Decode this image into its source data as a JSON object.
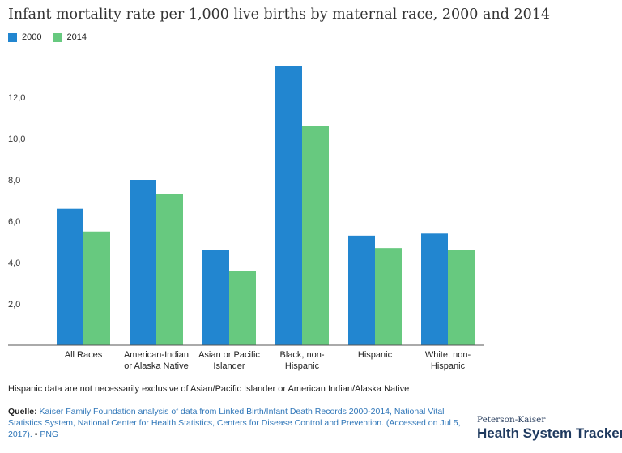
{
  "chart_data": {
    "type": "bar",
    "title": "Infant mortality rate per 1,000 live births by maternal race, 2000 and 2014",
    "categories": [
      [
        "All Races"
      ],
      [
        "American-Indian",
        "or Alaska Native"
      ],
      [
        "Asian or Pacific",
        "Islander"
      ],
      [
        "Black, non-",
        "Hispanic"
      ],
      [
        "Hispanic"
      ],
      [
        "White, non-",
        "Hispanic"
      ]
    ],
    "series": [
      {
        "name": "2000",
        "color": "#2286d0",
        "values": [
          6.6,
          8.0,
          4.6,
          13.5,
          5.3,
          5.4
        ]
      },
      {
        "name": "2014",
        "color": "#67c97f",
        "values": [
          5.5,
          7.3,
          3.6,
          10.6,
          4.7,
          4.6
        ]
      }
    ],
    "yticks": [
      2.0,
      4.0,
      6.0,
      8.0,
      10.0,
      12.0
    ],
    "ytick_labels": [
      "2,0",
      "4,0",
      "6,0",
      "8,0",
      "10,0",
      "12,0"
    ],
    "ylim": [
      0,
      14
    ],
    "xlabel": "",
    "ylabel": "",
    "legend": "top-left",
    "grid": false
  },
  "footer": {
    "note": "Hispanic data are not necessarily exclusive of Asian/Pacific Islander or American Indian/Alaska Native",
    "source_label": "Quelle:",
    "source_text": "Kaiser Family Foundation analysis of data from Linked Birth/Infant Death Records 2000-2014, National Vital Statistics System, National Center for Health Statistics, Centers for Disease Control and Prevention. (Accessed on Jul 5, 2017).",
    "bullet": "•",
    "png_label": "PNG"
  },
  "brand": {
    "top": "Peterson-Kaiser",
    "main": "Health System Tracker"
  }
}
